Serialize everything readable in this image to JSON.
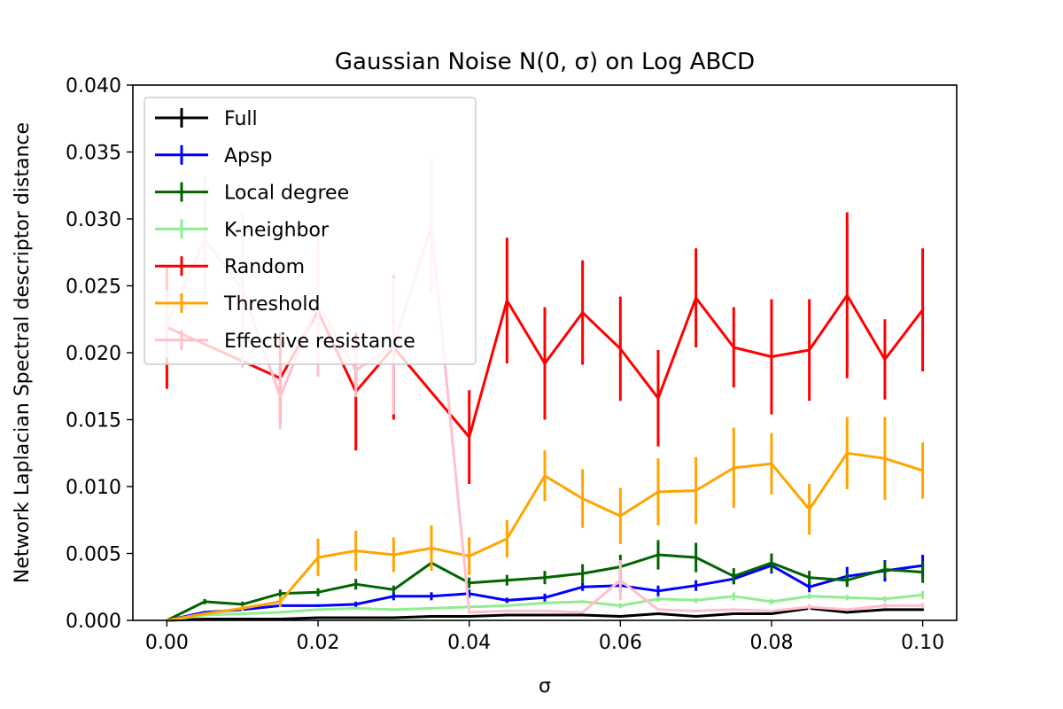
{
  "chart_data": {
    "type": "line",
    "title": "Gaussian Noise N(0, σ) on Log ABCD",
    "xlabel": "σ",
    "ylabel": "Network Laplacian Spectral descriptor distance",
    "xlim": [
      -0.0045,
      0.1045
    ],
    "ylim": [
      0,
      0.04
    ],
    "xticks": [
      0.0,
      0.02,
      0.04,
      0.06,
      0.08,
      0.1
    ],
    "xtick_labels": [
      "0.00",
      "0.02",
      "0.04",
      "0.06",
      "0.08",
      "0.10"
    ],
    "yticks": [
      0.0,
      0.005,
      0.01,
      0.015,
      0.02,
      0.025,
      0.03,
      0.035,
      0.04
    ],
    "ytick_labels": [
      "0.000",
      "0.005",
      "0.010",
      "0.015",
      "0.020",
      "0.025",
      "0.030",
      "0.035",
      "0.040"
    ],
    "legend_position": "upper-left",
    "grid": false,
    "x": [
      0.0,
      0.005,
      0.01,
      0.015,
      0.02,
      0.025,
      0.03,
      0.035,
      0.04,
      0.045,
      0.05,
      0.055,
      0.06,
      0.065,
      0.07,
      0.075,
      0.08,
      0.085,
      0.09,
      0.095,
      0.1
    ],
    "series": [
      {
        "name": "Full",
        "color": "#000000",
        "values": [
          0.0,
          0.0001,
          0.0001,
          0.0001,
          0.0002,
          0.0002,
          0.0002,
          0.0003,
          0.0003,
          0.0004,
          0.0004,
          0.0004,
          0.0003,
          0.0005,
          0.0003,
          0.0005,
          0.0005,
          0.0009,
          0.0006,
          0.0008,
          0.0008
        ],
        "errors": [
          0.0,
          5e-05,
          5e-05,
          5e-05,
          5e-05,
          5e-05,
          5e-05,
          5e-05,
          5e-05,
          5e-05,
          5e-05,
          5e-05,
          5e-05,
          5e-05,
          5e-05,
          5e-05,
          5e-05,
          0.0001,
          5e-05,
          5e-05,
          5e-05
        ]
      },
      {
        "name": "Apsp",
        "color": "#0000ff",
        "values": [
          0.0,
          0.0006,
          0.0008,
          0.0011,
          0.0011,
          0.0012,
          0.0018,
          0.0018,
          0.002,
          0.0015,
          0.0017,
          0.0025,
          0.0026,
          0.0022,
          0.0026,
          0.0031,
          0.0041,
          0.0025,
          0.0033,
          0.0037,
          0.0041
        ],
        "errors": [
          0.0,
          0.0001,
          0.0001,
          0.0001,
          0.0001,
          0.0002,
          0.0003,
          0.0003,
          0.0003,
          0.0002,
          0.0003,
          0.0003,
          0.0005,
          0.0004,
          0.0004,
          0.0004,
          0.0006,
          0.0004,
          0.0007,
          0.0008,
          0.0008
        ]
      },
      {
        "name": "Local degree",
        "color": "#006400",
        "values": [
          0.0,
          0.0014,
          0.0012,
          0.002,
          0.0021,
          0.0027,
          0.0023,
          0.0043,
          0.0028,
          0.003,
          0.0032,
          0.0035,
          0.004,
          0.0049,
          0.0047,
          0.0033,
          0.0043,
          0.0032,
          0.003,
          0.0038,
          0.0036
        ],
        "errors": [
          0.0,
          0.0002,
          0.0002,
          0.0003,
          0.0003,
          0.0004,
          0.0003,
          0.0004,
          0.0004,
          0.0004,
          0.0005,
          0.0007,
          0.0009,
          0.0011,
          0.0011,
          0.0006,
          0.0007,
          0.0005,
          0.0005,
          0.0006,
          0.0008
        ]
      },
      {
        "name": "K-neighbor",
        "color": "#90ee90",
        "values": [
          0.0,
          0.0004,
          0.0005,
          0.0006,
          0.0008,
          0.0009,
          0.0008,
          0.0009,
          0.001,
          0.0011,
          0.0013,
          0.0014,
          0.0011,
          0.0016,
          0.0015,
          0.0018,
          0.0014,
          0.0018,
          0.0017,
          0.0016,
          0.0019
        ],
        "errors": [
          0.0,
          0.0001,
          0.0001,
          0.0001,
          0.0001,
          0.0001,
          0.0001,
          0.0001,
          0.0001,
          0.0001,
          0.0001,
          0.0001,
          0.0002,
          0.0002,
          0.0002,
          0.0003,
          0.0002,
          0.0002,
          0.0002,
          0.0002,
          0.0003
        ]
      },
      {
        "name": "Random",
        "color": "#ff0000",
        "values": [
          0.0219,
          null,
          null,
          0.0181,
          0.0231,
          0.0171,
          0.0204,
          null,
          0.0137,
          0.0239,
          0.0192,
          0.023,
          0.0203,
          0.0166,
          0.0241,
          0.0204,
          0.0197,
          0.0202,
          0.0243,
          0.0195,
          0.0232
        ],
        "errors": [
          0.0046,
          0.0,
          0.0,
          0.0034,
          0.004,
          0.0044,
          0.0054,
          0.0,
          0.0035,
          0.0047,
          0.0042,
          0.0039,
          0.0039,
          0.0036,
          0.0037,
          0.003,
          0.0043,
          0.0038,
          0.0062,
          0.003,
          0.0046
        ]
      },
      {
        "name": "Threshold",
        "color": "#ffa500",
        "values": [
          0.0,
          0.0005,
          0.0009,
          0.0014,
          0.0047,
          0.0052,
          0.0049,
          0.0054,
          0.0048,
          0.0061,
          0.0108,
          0.0091,
          0.0078,
          0.0096,
          0.0097,
          0.0114,
          0.0117,
          0.0083,
          0.0125,
          0.0121,
          0.0112
        ],
        "errors": [
          0.0,
          0.0001,
          0.0002,
          0.0004,
          0.0014,
          0.0015,
          0.0013,
          0.0017,
          0.0014,
          0.0014,
          0.0019,
          0.0022,
          0.0021,
          0.0025,
          0.0025,
          0.003,
          0.0023,
          0.0019,
          0.0027,
          0.0031,
          0.0021
        ]
      },
      {
        "name": "Effective resistance",
        "color": "#ffc0cb",
        "values": [
          0.0221,
          0.0285,
          0.0247,
          0.0167,
          0.0237,
          0.0187,
          0.0205,
          0.0295,
          0.0006,
          0.0007,
          0.0007,
          0.0006,
          0.003,
          0.0008,
          0.0007,
          0.0008,
          0.0007,
          0.001,
          0.0008,
          0.0011,
          0.0011
        ],
        "errors": [
          0.0025,
          0.0046,
          0.0058,
          0.0024,
          0.0055,
          0.002,
          0.0051,
          0.005,
          0.0001,
          0.0001,
          0.0001,
          0.0001,
          0.0015,
          0.0001,
          0.0001,
          0.0001,
          0.0001,
          0.0002,
          0.0001,
          0.0002,
          0.0002
        ]
      }
    ]
  }
}
